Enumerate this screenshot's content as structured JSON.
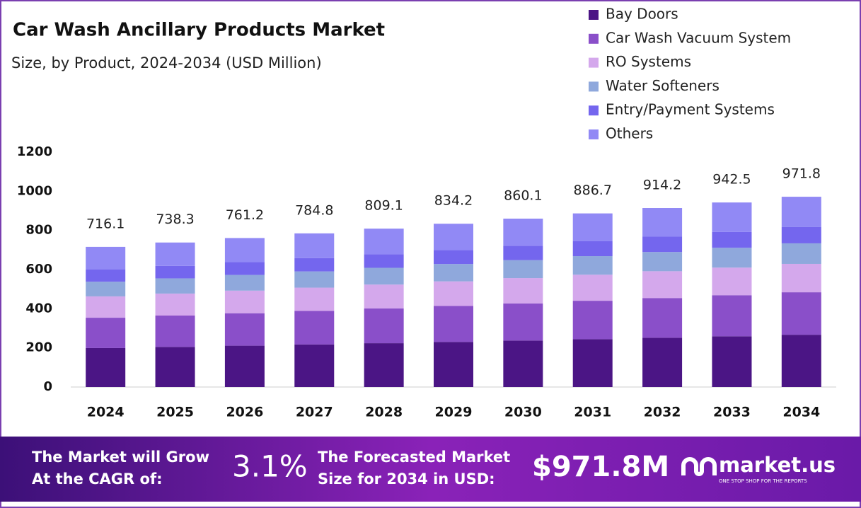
{
  "chart_data": {
    "type": "stacked_bar",
    "title": "Car Wash Ancillary Products Market",
    "subtitle": "Size, by Product, 2024-2034 (USD Million)",
    "categories": [
      "2024",
      "2025",
      "2026",
      "2027",
      "2028",
      "2029",
      "2030",
      "2031",
      "2032",
      "2033",
      "2034"
    ],
    "series": [
      {
        "name": "Bay Doors",
        "color": "#4b1585",
        "values": [
          199,
          204.9,
          211.1,
          217.4,
          223.8,
          230.5,
          237.4,
          244.4,
          251.7,
          259.2,
          267
        ]
      },
      {
        "name": "Car Wash Vacuum System",
        "color": "#8a4fc9",
        "values": [
          155,
          160.3,
          165.8,
          171.5,
          177.3,
          183.4,
          189.7,
          196.2,
          202.9,
          209.8,
          217
        ]
      },
      {
        "name": "RO Systems",
        "color": "#d4a8ec",
        "values": [
          109,
          112.2,
          115.4,
          118.7,
          122.2,
          125.7,
          129.3,
          133.1,
          136.9,
          140.9,
          145
        ]
      },
      {
        "name": "Water Softeners",
        "color": "#8fa8dc",
        "values": [
          75,
          77.6,
          80.2,
          83,
          85.8,
          88.7,
          91.8,
          94.9,
          98.2,
          101.5,
          105
        ]
      },
      {
        "name": "Entry/Payment Systems",
        "color": "#7466ee",
        "values": [
          62,
          63.8,
          65.7,
          67.7,
          69.7,
          71.7,
          73.9,
          76.1,
          78.3,
          80.6,
          83
        ]
      },
      {
        "name": "Others",
        "color": "#9189f5",
        "values": [
          116,
          119.4,
          122.9,
          126.6,
          130.3,
          134.1,
          138.1,
          142.2,
          146.4,
          150.7,
          155
        ]
      }
    ],
    "totals": [
      716.1,
      738.3,
      761.2,
      784.8,
      809.1,
      834.2,
      860.1,
      886.7,
      914.2,
      942.5,
      971.8
    ],
    "ylim": [
      0,
      1200
    ],
    "yticks": [
      0,
      200,
      400,
      600,
      800,
      1000,
      1200
    ],
    "grid": false
  },
  "banner": {
    "cagr_text": [
      "The Market will Grow",
      "At the CAGR of:"
    ],
    "cagr_value": "3.1%",
    "forecast_text": [
      "The Forecasted Market",
      "Size for 2034 in USD:"
    ],
    "forecast_value": "$971.8M",
    "brand": "market.us",
    "tagline": "ONE STOP SHOP FOR THE REPORTS"
  }
}
